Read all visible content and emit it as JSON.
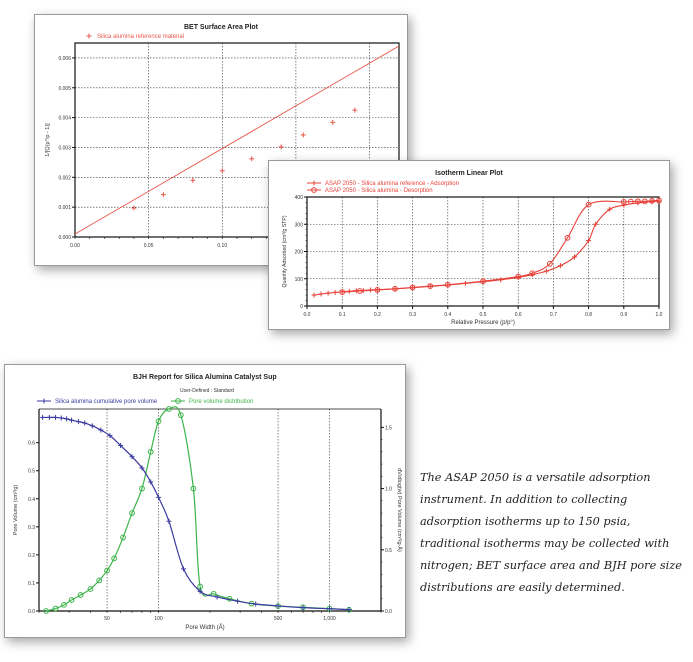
{
  "chart_data": [
    {
      "type": "line",
      "title": "BET Surface Area Plot",
      "xlabel": "Relative Pressure",
      "ylabel": "1/[Q(p°/p - 1)]",
      "xlim": [
        0.0,
        0.22
      ],
      "ylim": [
        0.0,
        0.0065
      ],
      "xticks": [
        "0.00",
        "0.05",
        "0.10",
        "0.15"
      ],
      "yticks": [
        "0.000",
        "0.001",
        "0.002",
        "0.003",
        "0.004",
        "0.005",
        "0.006"
      ],
      "grid": true,
      "legend_position": "top-left",
      "series": [
        {
          "name": "Silica alumina reference material",
          "color": "#e8574a",
          "marker": "plus",
          "x": [
            0.04,
            0.06,
            0.08,
            0.1,
            0.12,
            0.14,
            0.155,
            0.175,
            0.19
          ],
          "y": [
            0.00097,
            0.00142,
            0.0019,
            0.00222,
            0.00262,
            0.00302,
            0.00342,
            0.00384,
            0.00425
          ]
        }
      ],
      "fit_line": {
        "x": [
          0.0,
          0.22
        ],
        "y": [
          0.0001,
          0.0064
        ]
      }
    },
    {
      "type": "line",
      "title": "Isotherm Linear Plot",
      "xlabel": "Relative Pressure (p/p°)",
      "ylabel": "Quantity Adsorbed (cm³/g STP)",
      "xlim": [
        0.0,
        1.0
      ],
      "ylim": [
        0,
        400
      ],
      "xticks": [
        "0.0",
        "0.1",
        "0.2",
        "0.3",
        "0.4",
        "0.5",
        "0.6",
        "0.7",
        "0.8",
        "0.9",
        "1.0"
      ],
      "yticks": [
        "0",
        "100",
        "200",
        "300",
        "400"
      ],
      "grid": true,
      "legend_position": "top-left",
      "series": [
        {
          "name": "ASAP 2050 - Silica alumina reference - Adsorption",
          "color": "#e8423a",
          "marker": "plus",
          "x": [
            0.02,
            0.04,
            0.06,
            0.08,
            0.1,
            0.12,
            0.14,
            0.16,
            0.18,
            0.2,
            0.25,
            0.3,
            0.35,
            0.4,
            0.45,
            0.5,
            0.55,
            0.6,
            0.64,
            0.68,
            0.72,
            0.76,
            0.8,
            0.82,
            0.86,
            0.9,
            0.94,
            0.98,
            1.0
          ],
          "y": [
            40,
            44,
            47,
            50,
            52,
            54,
            56,
            57,
            59,
            60,
            63,
            67,
            72,
            77,
            83,
            89,
            96,
            105,
            115,
            128,
            148,
            180,
            240,
            300,
            355,
            370,
            378,
            383,
            385
          ]
        },
        {
          "name": "ASAP 2050 - Silica alumina - Desorption",
          "color": "#e8423a",
          "marker": "circle",
          "x": [
            1.0,
            0.98,
            0.96,
            0.94,
            0.92,
            0.9,
            0.8,
            0.74,
            0.69,
            0.64,
            0.6,
            0.5,
            0.4,
            0.35,
            0.3,
            0.25,
            0.2,
            0.15,
            0.1
          ],
          "y": [
            387,
            386,
            384,
            384,
            383,
            382,
            372,
            250,
            155,
            120,
            108,
            91,
            78,
            73,
            68,
            63,
            59,
            55,
            51
          ]
        }
      ]
    },
    {
      "type": "line",
      "title": "BJH Report for Silica Alumina Catalyst Sup",
      "subtitle": "User-Defined : Standard",
      "xlabel": "Pore Width (Å)",
      "ylabel": "Pore Volume (cm³/g)",
      "ylabel_right": "dV/dlog(w) Pore Volume (cm³/g·Å)",
      "xscale": "log",
      "xlim": [
        20,
        2000
      ],
      "ylim": [
        0.0,
        0.72
      ],
      "ylim_right": [
        0.0,
        1.65
      ],
      "xticks": [
        "50",
        "100",
        "500",
        "1,000"
      ],
      "yticks": [
        "0.0",
        "0.1",
        "0.2",
        "0.3",
        "0.4",
        "0.5",
        "0.6"
      ],
      "yticks_right": [
        "0.0",
        "0.5",
        "1.0",
        "1.5"
      ],
      "grid": "vertical-only",
      "legend_position": "top",
      "series": [
        {
          "name": "Silica alumina cumulative pore volume",
          "color": "#3a3aa0",
          "marker": "plus",
          "axis": "left",
          "x": [
            21,
            23,
            25,
            27,
            29,
            31,
            34,
            37,
            41,
            46,
            52,
            60,
            70,
            80,
            90,
            100,
            115,
            140,
            175,
            220,
            290,
            370,
            500,
            700,
            1000,
            1300
          ],
          "y": [
            0.69,
            0.69,
            0.69,
            0.688,
            0.685,
            0.68,
            0.675,
            0.67,
            0.66,
            0.645,
            0.625,
            0.59,
            0.55,
            0.51,
            0.46,
            0.405,
            0.32,
            0.15,
            0.07,
            0.05,
            0.035,
            0.025,
            0.018,
            0.012,
            0.008,
            0.005
          ]
        },
        {
          "name": "Pore volume distribution",
          "color": "#3cb34a",
          "marker": "circle",
          "axis": "right",
          "x": [
            22,
            25,
            28,
            31,
            35,
            40,
            45,
            50,
            55,
            62,
            70,
            80,
            90,
            100,
            115,
            135,
            160,
            175,
            210,
            260,
            350,
            500,
            700,
            1000,
            1300
          ],
          "y": [
            0.0,
            0.02,
            0.05,
            0.09,
            0.13,
            0.18,
            0.25,
            0.33,
            0.43,
            0.6,
            0.8,
            1.0,
            1.3,
            1.55,
            1.65,
            1.6,
            1.0,
            0.2,
            0.14,
            0.1,
            0.06,
            0.04,
            0.03,
            0.02,
            0.01
          ]
        }
      ]
    }
  ],
  "bet": {
    "title": "BET Surface Area Plot",
    "legend": "Silica alumina reference material",
    "xlabel": "Relative Pressure",
    "ylabel": "1/[Q(p°/p - 1)]",
    "xticks": [
      "0.00",
      "0.05",
      "0.10",
      "0.15"
    ],
    "yticks": [
      "0.000",
      "0.001",
      "0.002",
      "0.003",
      "0.004",
      "0.005",
      "0.006"
    ]
  },
  "iso": {
    "title": "Isotherm Linear Plot",
    "legend_ads": "ASAP 2050 - Silica alumina reference - Adsorption",
    "legend_des": "ASAP 2050 - Silica alumina - Desorption",
    "xlabel": "Relative Pressure (p/p°)",
    "ylabel": "Quantity Adsorbed (cm³/g STP)",
    "xticks": [
      "0.0",
      "0.1",
      "0.2",
      "0.3",
      "0.4",
      "0.5",
      "0.6",
      "0.7",
      "0.8",
      "0.9",
      "1.0"
    ],
    "yticks": [
      "0",
      "100",
      "200",
      "300",
      "400"
    ]
  },
  "bjh": {
    "title": "BJH Report for Silica Alumina Catalyst Sup",
    "subtitle": "User-Defined : Standard",
    "legend_cum": "Silica alumina cumulative pore volume",
    "legend_dist": "Pore volume distribution",
    "xlabel": "Pore Width (Å)",
    "ylabel": "Pore Volume (cm³/g)",
    "ylabel_right": "dV/dlog(w) Pore Volume (cm³/g·Å)",
    "xticks": [
      "50",
      "100",
      "500",
      "1,000"
    ],
    "yticks": [
      "0.0",
      "0.1",
      "0.2",
      "0.3",
      "0.4",
      "0.5",
      "0.6"
    ],
    "yticks_right": [
      "0.0",
      "0.5",
      "1.0",
      "1.5"
    ]
  },
  "caption": "The ASAP 2050 is a versatile adsorption instrument. In addition to collecting adsorption isotherms up to 150 psia, traditional isotherms may be collected with nitrogen; BET surface area and BJH pore size distributions are easily determined."
}
